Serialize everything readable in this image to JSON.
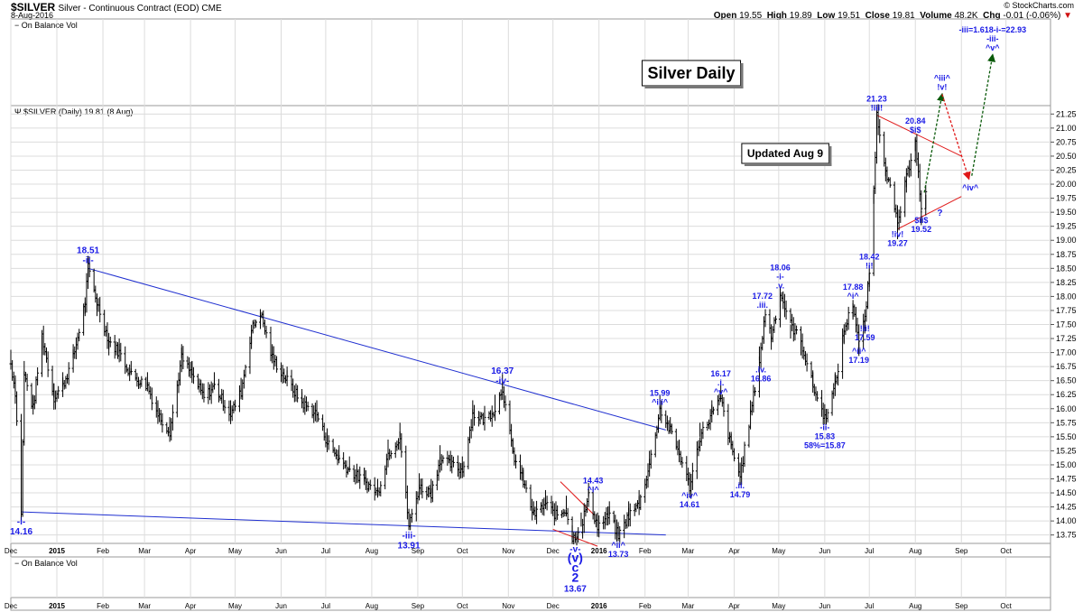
{
  "header": {
    "symbol": "$SILVER",
    "description": "Silver - Continuous Contract (EOD) CME",
    "date": "8-Aug-2016",
    "brand": "© StockCharts.com",
    "open_label": "Open",
    "open": "19.55",
    "high_label": "High",
    "high": "19.89",
    "low_label": "Low",
    "low": "19.51",
    "close_label": "Close",
    "close": "19.81",
    "volume_label": "Volume",
    "volume": "48.2K",
    "chg_label": "Chg",
    "chg": "-0.01 (-0.06%)"
  },
  "top_panel_label": "On Balance Vol",
  "bottom_panel_label": "On Balance Vol",
  "price_legend": "$SILVER (Daily) 19.81 (8 Aug)",
  "title_box": "Silver Daily",
  "updated_box": "Updated Aug 9",
  "colors": {
    "price": "#000000",
    "trendline": "#1f2fd0",
    "wave_label": "#1a1ae6",
    "red_line": "#e01818",
    "projection_green": "#0a5a0a",
    "projection_red": "#e01818",
    "grid": "#dcdcdc"
  },
  "chart_data": {
    "type": "bar",
    "subtype": "ohlc",
    "title": "Silver Daily",
    "y_axis_side": "right",
    "ylim": [
      13.6,
      21.4
    ],
    "yticks": [
      "21.25",
      "21.00",
      "20.75",
      "20.50",
      "20.25",
      "20.00",
      "19.75",
      "19.50",
      "19.25",
      "19.00",
      "18.75",
      "18.50",
      "18.25",
      "18.00",
      "17.75",
      "17.50",
      "17.25",
      "17.00",
      "16.75",
      "16.50",
      "16.25",
      "16.00",
      "15.75",
      "15.50",
      "15.25",
      "15.00",
      "14.75",
      "14.50",
      "14.25",
      "14.00",
      "13.75"
    ],
    "x_start": "2014-12-01",
    "x_end": "2016-10-31",
    "xticks": [
      {
        "date": "2014-12-01",
        "label": "Dec",
        "bold": false
      },
      {
        "date": "2015-01-01",
        "label": "2015",
        "bold": true
      },
      {
        "date": "2015-02-01",
        "label": "Feb",
        "bold": false
      },
      {
        "date": "2015-03-01",
        "label": "Mar",
        "bold": false
      },
      {
        "date": "2015-04-01",
        "label": "Apr",
        "bold": false
      },
      {
        "date": "2015-05-01",
        "label": "May",
        "bold": false
      },
      {
        "date": "2015-06-01",
        "label": "Jun",
        "bold": false
      },
      {
        "date": "2015-07-01",
        "label": "Jul",
        "bold": false
      },
      {
        "date": "2015-08-01",
        "label": "Aug",
        "bold": false
      },
      {
        "date": "2015-09-01",
        "label": "Sep",
        "bold": false
      },
      {
        "date": "2015-10-01",
        "label": "Oct",
        "bold": false
      },
      {
        "date": "2015-11-01",
        "label": "Nov",
        "bold": false
      },
      {
        "date": "2015-12-01",
        "label": "Dec",
        "bold": false
      },
      {
        "date": "2016-01-01",
        "label": "2016",
        "bold": true
      },
      {
        "date": "2016-02-01",
        "label": "Feb",
        "bold": false
      },
      {
        "date": "2016-03-01",
        "label": "Mar",
        "bold": false
      },
      {
        "date": "2016-04-01",
        "label": "Apr",
        "bold": false
      },
      {
        "date": "2016-05-01",
        "label": "May",
        "bold": false
      },
      {
        "date": "2016-06-01",
        "label": "Jun",
        "bold": false
      },
      {
        "date": "2016-07-01",
        "label": "Jul",
        "bold": false
      },
      {
        "date": "2016-08-01",
        "label": "Aug",
        "bold": false
      },
      {
        "date": "2016-09-01",
        "label": "Sep",
        "bold": false
      },
      {
        "date": "2016-10-01",
        "label": "Oct",
        "bold": false
      }
    ],
    "price_path": [
      [
        "2014-12-01",
        16.8
      ],
      [
        "2014-12-04",
        16.3
      ],
      [
        "2014-12-08",
        14.16
      ],
      [
        "2014-12-10",
        16.6
      ],
      [
        "2014-12-16",
        16.0
      ],
      [
        "2014-12-22",
        17.3
      ],
      [
        "2014-12-30",
        16.2
      ],
      [
        "2015-01-05",
        16.4
      ],
      [
        "2015-01-12",
        16.9
      ],
      [
        "2015-01-20",
        17.9
      ],
      [
        "2015-01-22",
        18.51
      ],
      [
        "2015-01-28",
        17.9
      ],
      [
        "2015-02-05",
        17.2
      ],
      [
        "2015-02-12",
        17.0
      ],
      [
        "2015-02-20",
        16.6
      ],
      [
        "2015-03-03",
        16.4
      ],
      [
        "2015-03-10",
        15.9
      ],
      [
        "2015-03-18",
        15.6
      ],
      [
        "2015-03-26",
        16.9
      ],
      [
        "2015-04-02",
        16.6
      ],
      [
        "2015-04-10",
        16.2
      ],
      [
        "2015-04-17",
        16.4
      ],
      [
        "2015-04-28",
        15.9
      ],
      [
        "2015-05-05",
        16.3
      ],
      [
        "2015-05-12",
        17.4
      ],
      [
        "2015-05-18",
        17.72
      ],
      [
        "2015-05-26",
        16.9
      ],
      [
        "2015-06-05",
        16.5
      ],
      [
        "2015-06-15",
        16.1
      ],
      [
        "2015-06-25",
        15.9
      ],
      [
        "2015-07-02",
        15.4
      ],
      [
        "2015-07-10",
        15.1
      ],
      [
        "2015-07-17",
        14.9
      ],
      [
        "2015-07-27",
        14.7
      ],
      [
        "2015-08-05",
        14.5
      ],
      [
        "2015-08-12",
        15.2
      ],
      [
        "2015-08-20",
        15.5
      ],
      [
        "2015-08-26",
        13.91
      ],
      [
        "2015-09-02",
        14.6
      ],
      [
        "2015-09-10",
        14.5
      ],
      [
        "2015-09-16",
        15.1
      ],
      [
        "2015-09-23",
        15.0
      ],
      [
        "2015-10-01",
        14.9
      ],
      [
        "2015-10-08",
        15.9
      ],
      [
        "2015-10-16",
        15.8
      ],
      [
        "2015-10-23",
        16.0
      ],
      [
        "2015-10-28",
        16.37
      ],
      [
        "2015-11-04",
        15.2
      ],
      [
        "2015-11-11",
        14.7
      ],
      [
        "2015-11-18",
        14.1
      ],
      [
        "2015-11-26",
        14.3
      ],
      [
        "2015-12-03",
        14.1
      ],
      [
        "2015-12-10",
        14.2
      ],
      [
        "2015-12-14",
        13.67
      ],
      [
        "2015-12-20",
        13.9
      ],
      [
        "2015-12-25",
        14.43
      ],
      [
        "2015-12-31",
        13.9
      ],
      [
        "2016-01-08",
        14.1
      ],
      [
        "2016-01-14",
        13.73
      ],
      [
        "2016-01-21",
        14.1
      ],
      [
        "2016-01-28",
        14.3
      ],
      [
        "2016-02-04",
        15.0
      ],
      [
        "2016-02-11",
        15.99
      ],
      [
        "2016-02-18",
        15.6
      ],
      [
        "2016-02-24",
        15.2
      ],
      [
        "2016-03-02",
        14.61
      ],
      [
        "2016-03-09",
        15.5
      ],
      [
        "2016-03-17",
        15.9
      ],
      [
        "2016-03-23",
        16.17
      ],
      [
        "2016-03-30",
        15.3
      ],
      [
        "2016-04-05",
        14.79
      ],
      [
        "2016-04-12",
        15.9
      ],
      [
        "2016-04-18",
        16.86
      ],
      [
        "2016-04-22",
        17.72
      ],
      [
        "2016-04-26",
        17.3
      ],
      [
        "2016-05-02",
        18.06
      ],
      [
        "2016-05-09",
        17.5
      ],
      [
        "2016-05-16",
        17.2
      ],
      [
        "2016-05-24",
        16.4
      ],
      [
        "2016-06-01",
        15.83
      ],
      [
        "2016-06-08",
        16.4
      ],
      [
        "2016-06-14",
        17.4
      ],
      [
        "2016-06-20",
        17.88
      ],
      [
        "2016-06-24",
        17.19
      ],
      [
        "2016-06-28",
        17.59
      ],
      [
        "2016-07-01",
        18.42
      ],
      [
        "2016-07-04",
        19.9
      ],
      [
        "2016-07-06",
        21.23
      ],
      [
        "2016-07-12",
        20.3
      ],
      [
        "2016-07-20",
        19.27
      ],
      [
        "2016-07-26",
        20.1
      ],
      [
        "2016-08-01",
        20.84
      ],
      [
        "2016-08-05",
        19.52
      ],
      [
        "2016-08-08",
        19.81
      ]
    ],
    "trendlines": [
      {
        "name": "upper-blue",
        "color": "blue",
        "from": [
          "2015-01-22",
          18.5
        ],
        "to": [
          "2016-02-15",
          15.62
        ]
      },
      {
        "name": "lower-blue",
        "color": "blue",
        "from": [
          "2014-12-08",
          14.16
        ],
        "to": [
          "2016-02-15",
          13.75
        ]
      },
      {
        "name": "red-upper-wedge",
        "color": "red",
        "from": [
          "2016-07-06",
          21.23
        ],
        "to": [
          "2016-09-01",
          20.5
        ]
      },
      {
        "name": "red-lower-wedge",
        "color": "red",
        "from": [
          "2016-07-20",
          19.2
        ],
        "to": [
          "2016-09-01",
          19.78
        ]
      },
      {
        "name": "red-cross-1",
        "color": "red",
        "from": [
          "2015-12-06",
          14.7
        ],
        "to": [
          "2015-12-29",
          14.1
        ]
      },
      {
        "name": "red-cross-2",
        "color": "red",
        "from": [
          "2015-12-01",
          13.85
        ],
        "to": [
          "2015-12-31",
          13.55
        ]
      }
    ],
    "projections": [
      {
        "name": "up-to-iii",
        "color": "green",
        "from": [
          "2016-08-07",
          19.85
        ],
        "to": [
          "2016-08-19",
          21.6
        ]
      },
      {
        "name": "down-to-iv",
        "color": "red",
        "from": [
          "2016-08-19",
          21.6
        ],
        "to": [
          "2016-09-06",
          20.1
        ]
      },
      {
        "name": "up-to-v",
        "color": "green",
        "from": [
          "2016-09-08",
          20.15
        ],
        "to": [
          "2016-09-22",
          22.3
        ]
      }
    ],
    "wave_labels": [
      {
        "date": "2014-12-08",
        "price": 14.16,
        "lines": [
          "-i-",
          "14.16"
        ],
        "pos": "below",
        "size": 10
      },
      {
        "date": "2015-01-22",
        "price": 18.51,
        "lines": [
          "18.51",
          "-ii-"
        ],
        "pos": "above",
        "size": 10
      },
      {
        "date": "2015-08-26",
        "price": 13.91,
        "lines": [
          "-iii-",
          "13.91"
        ],
        "pos": "below",
        "size": 10
      },
      {
        "date": "2015-10-28",
        "price": 16.37,
        "lines": [
          "16.37",
          "-iv-"
        ],
        "pos": "above",
        "size": 10
      },
      {
        "date": "2015-12-16",
        "price": 13.67,
        "lines": [
          "-v-",
          "(v)",
          "c",
          "2",
          "13.67"
        ],
        "pos": "below",
        "size": 10
      },
      {
        "date": "2015-12-28",
        "price": 14.43,
        "lines": [
          "14.43",
          "^i^"
        ],
        "pos": "above",
        "size": 9
      },
      {
        "date": "2016-01-14",
        "price": 13.73,
        "lines": [
          "^ii^",
          "13.73"
        ],
        "pos": "below",
        "size": 9
      },
      {
        "date": "2016-02-11",
        "price": 15.99,
        "lines": [
          "15.99",
          "^iii^"
        ],
        "pos": "above",
        "size": 9
      },
      {
        "date": "2016-03-02",
        "price": 14.61,
        "lines": [
          "^iv^",
          "14.61"
        ],
        "pos": "below",
        "size": 9
      },
      {
        "date": "2016-03-23",
        "price": 16.17,
        "lines": [
          "16.17",
          ".i.",
          "^v^"
        ],
        "pos": "above",
        "size": 9
      },
      {
        "date": "2016-04-05",
        "price": 14.79,
        "lines": [
          ".ii.",
          "14.79"
        ],
        "pos": "below",
        "size": 9
      },
      {
        "date": "2016-04-20",
        "price": 17.72,
        "lines": [
          "17.72",
          ".iii."
        ],
        "pos": "above",
        "size": 9
      },
      {
        "date": "2016-04-19",
        "price": 16.86,
        "lines": [
          ".iv.",
          "16.86"
        ],
        "pos": "below",
        "size": 9
      },
      {
        "date": "2016-05-02",
        "price": 18.06,
        "lines": [
          "18.06",
          "-i-",
          ".v."
        ],
        "pos": "above",
        "size": 9
      },
      {
        "date": "2016-06-01",
        "price": 15.83,
        "lines": [
          "-ii-",
          "15.83",
          "58%=15.87"
        ],
        "pos": "below",
        "size": 9
      },
      {
        "date": "2016-06-20",
        "price": 17.88,
        "lines": [
          "17.88",
          "^i^"
        ],
        "pos": "above",
        "size": 9
      },
      {
        "date": "2016-06-24",
        "price": 17.19,
        "lines": [
          "^ii^",
          "17.19"
        ],
        "pos": "below",
        "size": 9
      },
      {
        "date": "2016-07-01",
        "price": 18.42,
        "lines": [
          "18.42",
          "!i!"
        ],
        "pos": "above",
        "size": 9
      },
      {
        "date": "2016-06-28",
        "price": 17.59,
        "lines": [
          "!ii!",
          "17.59"
        ],
        "pos": "below",
        "size": 9
      },
      {
        "date": "2016-07-06",
        "price": 21.23,
        "lines": [
          "21.23",
          "!iii!"
        ],
        "pos": "above",
        "size": 9
      },
      {
        "date": "2016-07-20",
        "price": 19.27,
        "lines": [
          "!iv!",
          "19.27"
        ],
        "pos": "below",
        "size": 9
      },
      {
        "date": "2016-08-01",
        "price": 20.84,
        "lines": [
          "20.84",
          "$i$"
        ],
        "pos": "above",
        "size": 9
      },
      {
        "date": "2016-08-05",
        "price": 19.52,
        "lines": [
          "$ii$",
          "19.52"
        ],
        "pos": "below",
        "size": 9
      },
      {
        "date": "2016-08-12",
        "price": 19.5,
        "lines": [
          "?"
        ],
        "pos": "right",
        "size": 10
      },
      {
        "date": "2016-08-19",
        "price": 21.6,
        "lines": [
          "^iii^",
          "!v!"
        ],
        "pos": "above",
        "size": 9
      },
      {
        "date": "2016-09-07",
        "price": 20.1,
        "lines": [
          "^iv^"
        ],
        "pos": "below",
        "size": 9
      },
      {
        "date": "2016-09-22",
        "price": 22.3,
        "lines": [
          "-iii=1.618-i-=22.93",
          "-iii-",
          "^v^"
        ],
        "pos": "above",
        "size": 9
      }
    ]
  }
}
